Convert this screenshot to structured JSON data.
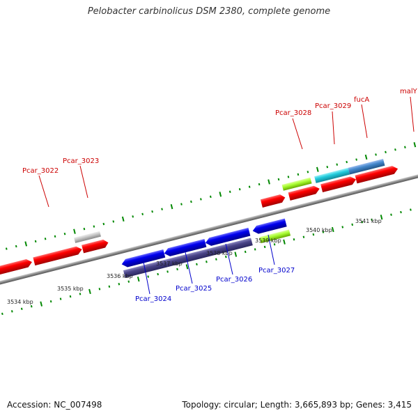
{
  "title": "Pelobacter carbinolicus DSM 2380, complete genome",
  "footer": {
    "accession": "Accession: NC_007498",
    "topology": "Topology: circular; Length: 3,665,893 bp; Genes: 3,415"
  },
  "scale": {
    "ticks": [
      {
        "kbp": 3534,
        "label": "3534 kbp"
      },
      {
        "kbp": 3535,
        "label": "3535 kbp"
      },
      {
        "kbp": 3536,
        "label": "3536 kbp"
      },
      {
        "kbp": 3537,
        "label": "3537 kbp"
      },
      {
        "kbp": 3538,
        "label": "3538 kbp"
      },
      {
        "kbp": 3539,
        "label": "3539 kbp"
      },
      {
        "kbp": 3540,
        "label": "3540 kbp"
      },
      {
        "kbp": 3541,
        "label": "3541 kbp"
      }
    ]
  },
  "genes_top": [
    {
      "label": "Pcar_3022",
      "color": "#cc0000"
    },
    {
      "label": "Pcar_3023",
      "color": "#cc0000"
    },
    {
      "label": "Pcar_3028",
      "color": "#cc0000"
    },
    {
      "label": "Pcar_3029",
      "color": "#cc0000"
    },
    {
      "label": "fucA",
      "color": "#cc0000"
    },
    {
      "label": "malY",
      "color": "#cc0000"
    }
  ],
  "genes_bottom": [
    {
      "label": "Pcar_3024",
      "color": "#0000cc"
    },
    {
      "label": "Pcar_3025",
      "color": "#0000cc"
    },
    {
      "label": "Pcar_3026",
      "color": "#0000cc"
    },
    {
      "label": "Pcar_3027",
      "color": "#0000cc"
    }
  ],
  "colors": {
    "forward_gene": "#ff0000",
    "reverse_gene": "#0000ee",
    "lightgreen_gene": "#aaff33",
    "gray_gene": "#c8c8c8",
    "cyan_gene": "#22ccdd",
    "steelblue_gene": "#4488cc",
    "slate_gene": "#4a4488",
    "tick_green": "#008800",
    "backbone": "#888888"
  }
}
